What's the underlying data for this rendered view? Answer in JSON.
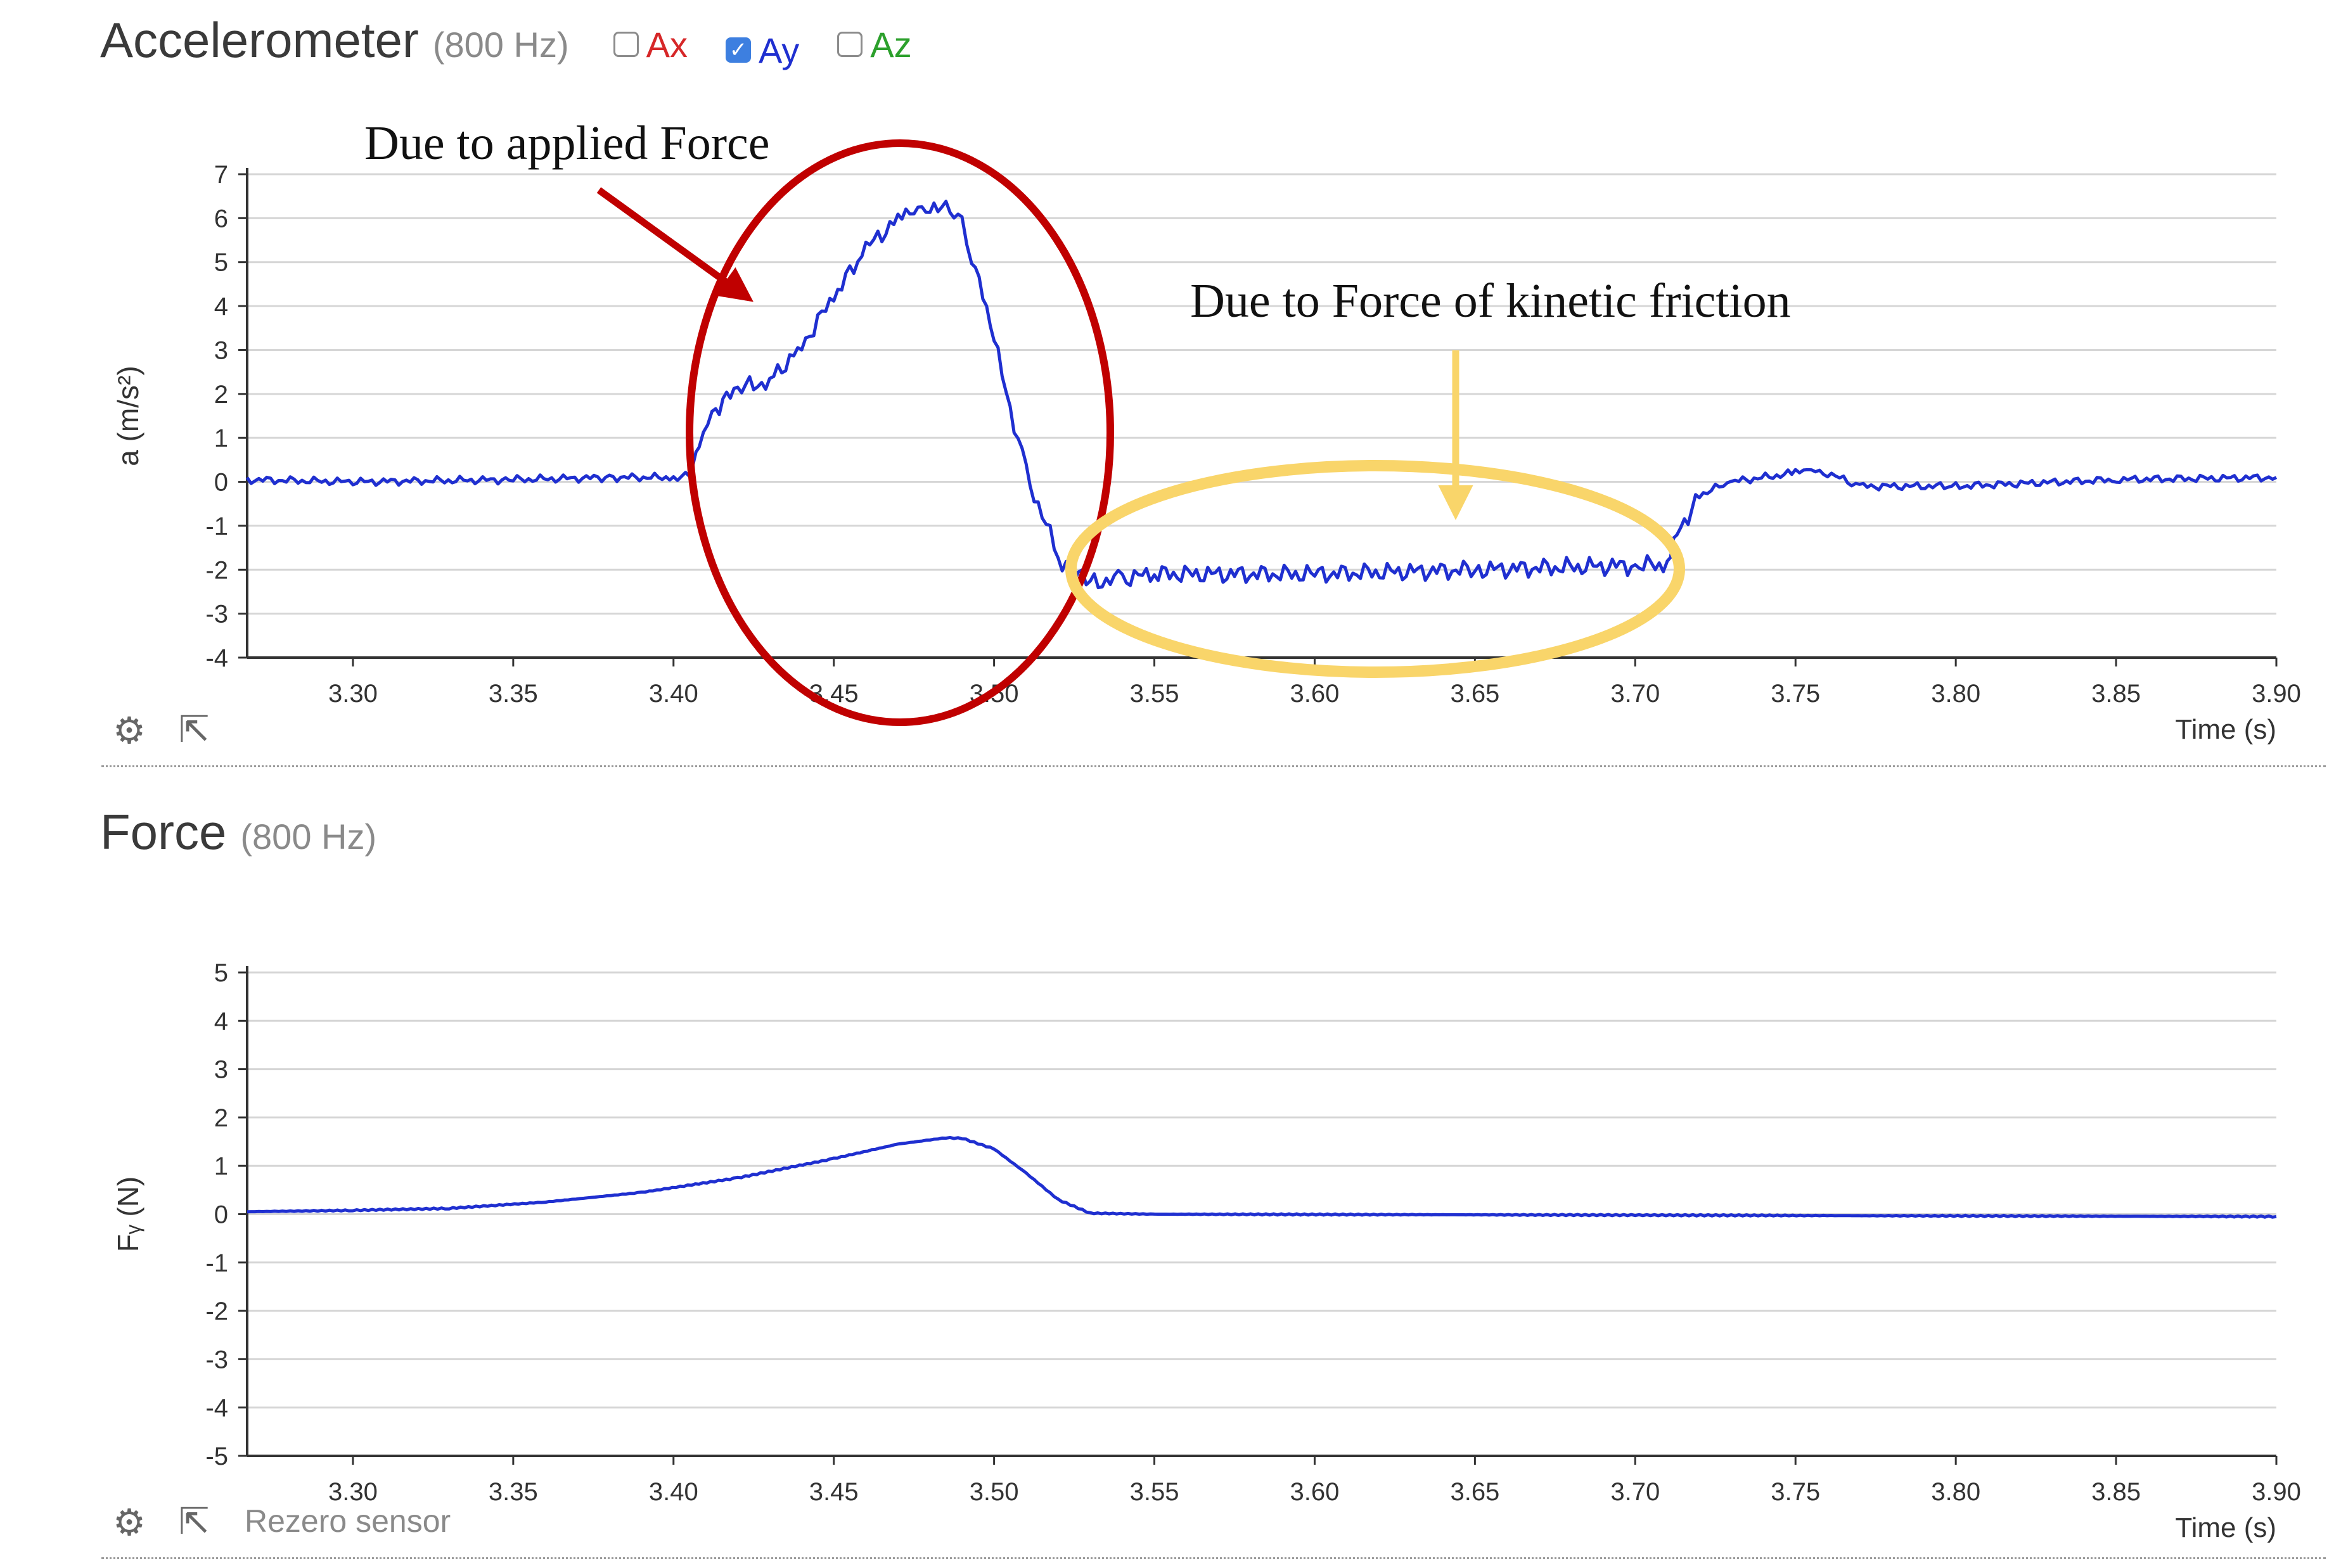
{
  "accelerometer": {
    "title": "Accelerometer",
    "rate": "(800 Hz)",
    "checkboxes": [
      {
        "label": "Ax",
        "checked": false,
        "color": "#d62728"
      },
      {
        "label": "Ay",
        "checked": true,
        "color": "#1f2fd0"
      },
      {
        "label": "Az",
        "checked": false,
        "color": "#2ca02c"
      }
    ],
    "ylabel": "a (m/s²)",
    "xlabel": "Time (s)"
  },
  "force": {
    "title": "Force",
    "rate": "(800 Hz)",
    "ylabel": "Fᵧ (N)",
    "xlabel": "Time (s)",
    "rezero_label": "Rezero sensor"
  },
  "annotations": {
    "applied": "Due to applied Force",
    "friction": "Due to Force of kinetic friction",
    "applied_color": "#c00000",
    "friction_color": "#f9d56a"
  },
  "icons": {
    "settings": "gear-icon",
    "export": "external-link-icon"
  },
  "chart_data": [
    {
      "type": "line",
      "title": "Accelerometer",
      "xlabel": "Time (s)",
      "ylabel": "a (m/s²)",
      "xlim": [
        3.267,
        3.9
      ],
      "ylim": [
        -4,
        7
      ],
      "xticks": [
        "3.30",
        "3.35",
        "3.40",
        "3.45",
        "3.50",
        "3.55",
        "3.60",
        "3.65",
        "3.70",
        "3.75",
        "3.80",
        "3.85",
        "3.90"
      ],
      "yticks": [
        "7",
        "6",
        "5",
        "4",
        "3",
        "2",
        "1",
        "0",
        "-1",
        "-2",
        "-3",
        "-4"
      ],
      "grid": true,
      "series": [
        {
          "color": "#1f2fd0",
          "x": [
            3.267,
            3.3,
            3.35,
            3.38,
            3.4,
            3.405,
            3.408,
            3.412,
            3.42,
            3.43,
            3.44,
            3.45,
            3.46,
            3.47,
            3.475,
            3.48,
            3.485,
            3.49,
            3.493,
            3.5,
            3.51,
            3.52,
            3.525,
            3.53,
            3.54,
            3.55,
            3.6,
            3.65,
            3.7,
            3.71,
            3.713,
            3.72,
            3.73,
            3.75,
            3.755,
            3.76,
            3.77,
            3.8,
            3.85,
            3.9
          ],
          "y": [
            0.05,
            0.0,
            0.05,
            0.1,
            0.1,
            0.15,
            0.8,
            1.6,
            2.1,
            2.3,
            3.1,
            4.2,
            5.3,
            6.0,
            6.3,
            6.2,
            6.15,
            6.0,
            5.2,
            3.2,
            0.2,
            -1.7,
            -2.1,
            -2.3,
            -2.2,
            -2.1,
            -2.1,
            -2.0,
            -1.9,
            -1.9,
            -1.2,
            -0.3,
            0.0,
            0.2,
            0.3,
            0.2,
            -0.1,
            -0.1,
            0.05,
            0.1
          ]
        }
      ]
    },
    {
      "type": "line",
      "title": "Force",
      "xlabel": "Time (s)",
      "ylabel": "Fᵧ (N)",
      "xlim": [
        3.267,
        3.9
      ],
      "ylim": [
        -5,
        5
      ],
      "xticks": [
        "3.30",
        "3.35",
        "3.40",
        "3.45",
        "3.50",
        "3.55",
        "3.60",
        "3.65",
        "3.70",
        "3.75",
        "3.80",
        "3.85",
        "3.90"
      ],
      "yticks": [
        "5",
        "4",
        "3",
        "2",
        "1",
        "0",
        "-1",
        "-2",
        "-3",
        "-4",
        "-5"
      ],
      "grid": true,
      "series": [
        {
          "color": "#1f2fd0",
          "x": [
            3.267,
            3.3,
            3.33,
            3.36,
            3.39,
            3.42,
            3.45,
            3.47,
            3.485,
            3.49,
            3.5,
            3.51,
            3.52,
            3.53,
            3.55,
            3.7,
            3.9
          ],
          "y": [
            0.05,
            0.08,
            0.12,
            0.25,
            0.45,
            0.75,
            1.15,
            1.45,
            1.58,
            1.57,
            1.35,
            0.85,
            0.3,
            0.02,
            0.0,
            -0.02,
            -0.05
          ]
        }
      ]
    }
  ]
}
